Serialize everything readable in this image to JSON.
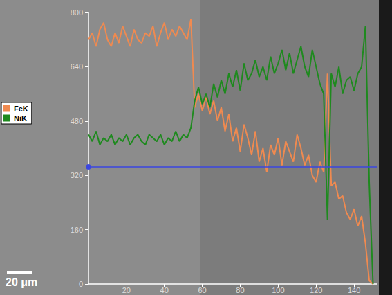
{
  "chart_data": {
    "type": "line",
    "x": [
      0,
      2,
      4,
      6,
      8,
      10,
      12,
      14,
      16,
      18,
      20,
      22,
      24,
      26,
      28,
      30,
      32,
      34,
      36,
      38,
      40,
      42,
      44,
      46,
      48,
      50,
      52,
      54,
      56,
      58,
      60,
      62,
      64,
      66,
      68,
      70,
      72,
      74,
      76,
      78,
      80,
      82,
      84,
      86,
      88,
      90,
      92,
      94,
      96,
      98,
      100,
      102,
      104,
      106,
      108,
      110,
      112,
      114,
      116,
      118,
      120,
      122,
      124,
      126,
      128,
      130,
      132,
      134,
      136,
      138,
      140,
      142,
      144,
      146,
      148,
      150
    ],
    "series": [
      {
        "name": "FeK",
        "color": "#f08a50",
        "values": [
          720,
          740,
          700,
          750,
          770,
          720,
          700,
          740,
          710,
          760,
          730,
          700,
          750,
          720,
          710,
          740,
          730,
          760,
          700,
          740,
          770,
          720,
          750,
          730,
          760,
          740,
          720,
          780,
          520,
          560,
          510,
          550,
          500,
          540,
          480,
          520,
          450,
          500,
          420,
          460,
          390,
          470,
          430,
          380,
          450,
          360,
          400,
          330,
          410,
          380,
          430,
          350,
          420,
          390,
          360,
          440,
          400,
          350,
          380,
          320,
          300,
          360,
          330,
          620,
          290,
          300,
          250,
          260,
          210,
          190,
          220,
          170,
          200,
          120,
          10,
          0
        ]
      },
      {
        "name": "NiK",
        "color": "#1e8a1e",
        "values": [
          440,
          420,
          450,
          410,
          430,
          420,
          440,
          410,
          430,
          420,
          440,
          410,
          430,
          440,
          420,
          410,
          440,
          430,
          420,
          440,
          410,
          430,
          420,
          450,
          420,
          440,
          430,
          460,
          540,
          580,
          530,
          560,
          520,
          590,
          550,
          600,
          560,
          620,
          580,
          630,
          570,
          650,
          600,
          620,
          660,
          610,
          640,
          600,
          670,
          620,
          650,
          690,
          630,
          680,
          620,
          660,
          700,
          640,
          610,
          690,
          640,
          590,
          560,
          190,
          620,
          580,
          640,
          560,
          600,
          610,
          570,
          620,
          640,
          760,
          300,
          0
        ]
      }
    ],
    "xlim": [
      0,
      152
    ],
    "xticks": [
      20,
      40,
      60,
      80,
      100,
      120,
      140
    ],
    "ylim": [
      0,
      800
    ],
    "yticks": [
      0,
      160,
      320,
      480,
      640,
      800
    ],
    "grid": false,
    "legend": "left",
    "reference_line": {
      "y": 345,
      "color": "#3a46e0"
    },
    "scale_bar": "20 μm"
  }
}
